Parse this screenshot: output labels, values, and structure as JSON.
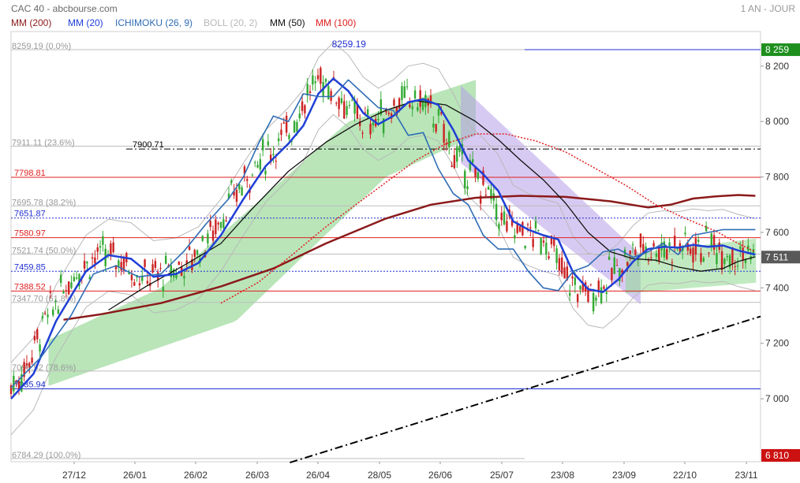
{
  "header": {
    "source": "CAC 40 - abcbourse.com",
    "period": "1 AN - JOUR",
    "legend": [
      {
        "label": "MM (200)",
        "color": "#8b1a1a"
      },
      {
        "label": "MM (20)",
        "color": "#1f3fd6"
      },
      {
        "label": "ICHIMOKU (26, 9)",
        "color": "#2f6db5"
      },
      {
        "label": "BOLL (20, 2)",
        "color": "#b8b8b8"
      },
      {
        "label": "MM (50)",
        "color": "#111111"
      },
      {
        "label": "MM (100)",
        "color": "#e02020"
      }
    ]
  },
  "chart_data": {
    "type": "line",
    "title": "CAC 40 - abcbourse.com",
    "subtitle": "1 AN - JOUR",
    "ylim": [
      6784.29,
      8350
    ],
    "y_ticks": [
      7000,
      7200,
      7400,
      7600,
      7800,
      8000,
      8200
    ],
    "y_tick_labels": [
      "7 000",
      "7 200",
      "7 400",
      "7 600",
      "7 800",
      "8 000",
      "8 200"
    ],
    "x_tick_labels": [
      "27/12",
      "26/01",
      "26/02",
      "26/03",
      "26/04",
      "28/05",
      "26/06",
      "25/07",
      "23/08",
      "23/09",
      "22/10",
      "23/11"
    ],
    "last_price": {
      "value": 7511,
      "label": "7 511"
    },
    "high_tag": {
      "value": 8259,
      "label": "8 259"
    },
    "low_tag": {
      "value": 6810,
      "label": "6 810"
    },
    "peak_annotation": {
      "value": 8259.19,
      "label": "8259.19"
    },
    "fibonacci": [
      {
        "value": 8259.19,
        "label": "8259.19  (0.0%)"
      },
      {
        "value": 7911.11,
        "label": "7911.11  (23.6%)"
      },
      {
        "value": 7695.78,
        "label": "7695.78  (38.2%)"
      },
      {
        "value": 7521.74,
        "label": "7521.74  (50.0%)"
      },
      {
        "value": 7347.7,
        "label": "7347.70  (61.8%)"
      },
      {
        "value": 7099.92,
        "label": "7099.92  (78.6%)"
      },
      {
        "value": 6784.29,
        "label": "6784.29  (100.0%)"
      }
    ],
    "horizontal_lines": [
      {
        "value": 7900.71,
        "label": "7900.71",
        "style": "dashdot",
        "color": "#000000"
      },
      {
        "value": 7798.81,
        "label": "7798.81",
        "style": "solid",
        "color": "#e02020"
      },
      {
        "value": 7651.87,
        "label": "7651.87",
        "style": "dotted",
        "color": "#2030d0"
      },
      {
        "value": 7580.97,
        "label": "7580.97",
        "style": "solid",
        "color": "#e02020"
      },
      {
        "value": 7459.85,
        "label": "7459.85",
        "style": "dotted",
        "color": "#2030d0"
      },
      {
        "value": 7388.52,
        "label": "7388.52",
        "style": "solid",
        "color": "#e02020"
      },
      {
        "value": 7035.94,
        "label": "7035.94",
        "style": "solid",
        "color": "#2030d0"
      }
    ],
    "trendline": {
      "style": "dashdot",
      "color": "#000000",
      "from": [
        0.372,
        6770
      ],
      "to": [
        1.0,
        7297
      ]
    },
    "series": [
      {
        "name": "MM (200)",
        "color": "#8b1a1a",
        "points": [
          [
            0.07,
            7285
          ],
          [
            0.12,
            7305
          ],
          [
            0.2,
            7345
          ],
          [
            0.28,
            7405
          ],
          [
            0.35,
            7470
          ],
          [
            0.42,
            7560
          ],
          [
            0.5,
            7650
          ],
          [
            0.56,
            7700
          ],
          [
            0.62,
            7725
          ],
          [
            0.68,
            7732
          ],
          [
            0.74,
            7728
          ],
          [
            0.8,
            7712
          ],
          [
            0.85,
            7690
          ],
          [
            0.88,
            7700
          ],
          [
            0.91,
            7722
          ],
          [
            0.94,
            7730
          ],
          [
            0.97,
            7735
          ],
          [
            0.993,
            7732
          ]
        ]
      },
      {
        "name": "MM (100)",
        "color": "#e02020",
        "points": [
          [
            0.28,
            7345
          ],
          [
            0.33,
            7420
          ],
          [
            0.38,
            7530
          ],
          [
            0.42,
            7620
          ],
          [
            0.46,
            7700
          ],
          [
            0.5,
            7780
          ],
          [
            0.54,
            7860
          ],
          [
            0.58,
            7920
          ],
          [
            0.62,
            7955
          ],
          [
            0.66,
            7955
          ],
          [
            0.7,
            7930
          ],
          [
            0.74,
            7890
          ],
          [
            0.78,
            7830
          ],
          [
            0.82,
            7770
          ],
          [
            0.86,
            7700
          ],
          [
            0.9,
            7650
          ],
          [
            0.94,
            7605
          ],
          [
            0.97,
            7560
          ],
          [
            0.993,
            7530
          ]
        ]
      },
      {
        "name": "MM (50)",
        "color": "#111111",
        "points": [
          [
            0.13,
            7320
          ],
          [
            0.18,
            7405
          ],
          [
            0.23,
            7480
          ],
          [
            0.28,
            7560
          ],
          [
            0.32,
            7680
          ],
          [
            0.37,
            7820
          ],
          [
            0.42,
            7925
          ],
          [
            0.46,
            7990
          ],
          [
            0.5,
            8040
          ],
          [
            0.54,
            8075
          ],
          [
            0.58,
            8060
          ],
          [
            0.62,
            8000
          ],
          [
            0.65,
            7935
          ],
          [
            0.68,
            7860
          ],
          [
            0.71,
            7790
          ],
          [
            0.74,
            7705
          ],
          [
            0.77,
            7600
          ],
          [
            0.8,
            7530
          ],
          [
            0.83,
            7505
          ],
          [
            0.86,
            7500
          ],
          [
            0.89,
            7475
          ],
          [
            0.92,
            7460
          ],
          [
            0.95,
            7470
          ],
          [
            0.97,
            7495
          ],
          [
            0.993,
            7512
          ]
        ]
      },
      {
        "name": "MM (20)",
        "color": "#1f3fd6",
        "points": [
          [
            0.0,
            7000
          ],
          [
            0.03,
            7090
          ],
          [
            0.06,
            7280
          ],
          [
            0.1,
            7460
          ],
          [
            0.13,
            7518
          ],
          [
            0.16,
            7505
          ],
          [
            0.19,
            7440
          ],
          [
            0.22,
            7450
          ],
          [
            0.25,
            7490
          ],
          [
            0.28,
            7590
          ],
          [
            0.31,
            7720
          ],
          [
            0.34,
            7840
          ],
          [
            0.37,
            7920
          ],
          [
            0.39,
            7985
          ],
          [
            0.41,
            8100
          ],
          [
            0.43,
            8155
          ],
          [
            0.45,
            8110
          ],
          [
            0.47,
            8030
          ],
          [
            0.49,
            7990
          ],
          [
            0.51,
            8020
          ],
          [
            0.53,
            8070
          ],
          [
            0.55,
            8080
          ],
          [
            0.57,
            8060
          ],
          [
            0.59,
            7970
          ],
          [
            0.61,
            7860
          ],
          [
            0.63,
            7810
          ],
          [
            0.65,
            7750
          ],
          [
            0.67,
            7640
          ],
          [
            0.69,
            7610
          ],
          [
            0.71,
            7590
          ],
          [
            0.73,
            7575
          ],
          [
            0.75,
            7455
          ],
          [
            0.77,
            7395
          ],
          [
            0.79,
            7385
          ],
          [
            0.81,
            7430
          ],
          [
            0.83,
            7495
          ],
          [
            0.85,
            7540
          ],
          [
            0.87,
            7548
          ],
          [
            0.89,
            7545
          ],
          [
            0.91,
            7555
          ],
          [
            0.93,
            7548
          ],
          [
            0.95,
            7553
          ],
          [
            0.97,
            7535
          ],
          [
            0.993,
            7520
          ]
        ]
      },
      {
        "name": "ICHIMOKU (26, 9)",
        "color": "#2f6db5",
        "points": [
          [
            0.0,
            7040
          ],
          [
            0.04,
            7150
          ],
          [
            0.08,
            7300
          ],
          [
            0.11,
            7450
          ],
          [
            0.14,
            7480
          ],
          [
            0.17,
            7440
          ],
          [
            0.2,
            7450
          ],
          [
            0.23,
            7530
          ],
          [
            0.26,
            7630
          ],
          [
            0.29,
            7720
          ],
          [
            0.31,
            7800
          ],
          [
            0.33,
            7920
          ],
          [
            0.35,
            8020
          ],
          [
            0.37,
            8000
          ],
          [
            0.39,
            8100
          ],
          [
            0.41,
            8090
          ],
          [
            0.43,
            8090
          ],
          [
            0.45,
            8150
          ],
          [
            0.47,
            8100
          ],
          [
            0.49,
            8050
          ],
          [
            0.51,
            8040
          ],
          [
            0.53,
            7950
          ],
          [
            0.55,
            7960
          ],
          [
            0.57,
            7830
          ],
          [
            0.59,
            7740
          ],
          [
            0.61,
            7700
          ],
          [
            0.63,
            7590
          ],
          [
            0.65,
            7540
          ],
          [
            0.67,
            7540
          ],
          [
            0.69,
            7460
          ],
          [
            0.71,
            7400
          ],
          [
            0.73,
            7390
          ],
          [
            0.75,
            7460
          ],
          [
            0.77,
            7480
          ],
          [
            0.79,
            7530
          ],
          [
            0.81,
            7540
          ],
          [
            0.83,
            7510
          ],
          [
            0.85,
            7530
          ],
          [
            0.87,
            7560
          ],
          [
            0.89,
            7520
          ],
          [
            0.91,
            7590
          ],
          [
            0.93,
            7600
          ],
          [
            0.95,
            7610
          ],
          [
            0.97,
            7610
          ],
          [
            0.993,
            7610
          ]
        ]
      }
    ],
    "grid": true,
    "legend_position": "top-left"
  }
}
